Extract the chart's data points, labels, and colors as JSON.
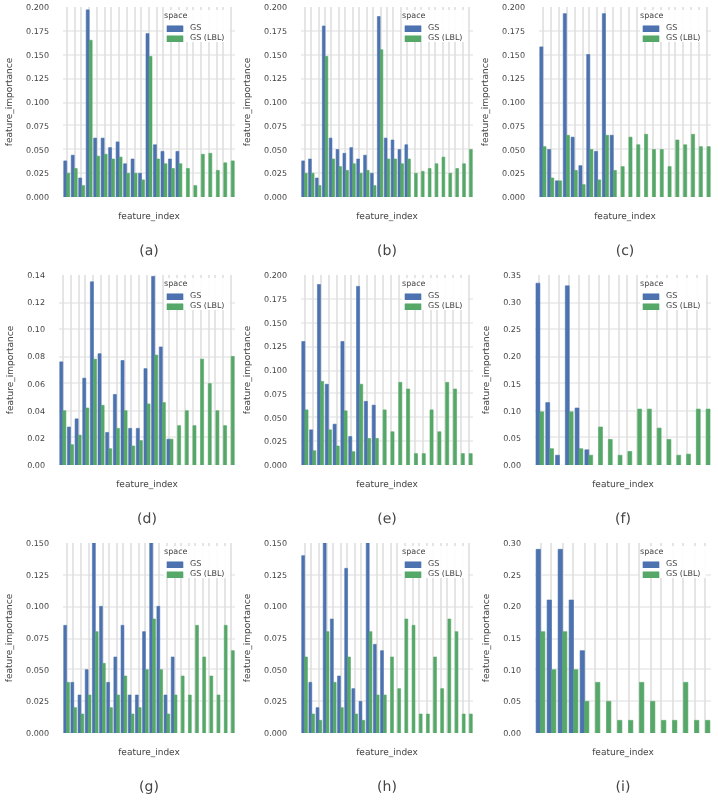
{
  "chart_data": [
    {
      "type": "bar",
      "xlabel": "feature_index",
      "ylabel": "feature_importance",
      "legend_title": "space",
      "legend": "top right",
      "grid": true,
      "annotations": [
        "(a)"
      ],
      "categories": [
        null,
        null,
        null,
        null,
        null,
        null,
        null,
        null,
        null,
        null,
        null,
        null,
        null,
        null,
        null,
        null,
        null,
        null,
        null,
        null,
        null,
        null,
        null
      ],
      "ylim": [
        0,
        0.2
      ],
      "yticks": [
        {
          "value": 0,
          "label": "0.000"
        },
        0.025,
        {
          "value": 0.05,
          "label": "0.050"
        },
        0.075,
        {
          "value": 0.1,
          "label": "0.100"
        },
        0.125,
        {
          "value": 0.15,
          "label": "0.150"
        },
        0.175,
        {
          "value": 0.2,
          "label": "0.200"
        }
      ],
      "series": [
        {
          "name": "GS",
          "color": "#4c72b0",
          "values": [
            0.038,
            0.044,
            0.02,
            0.197,
            0.062,
            0.062,
            0.052,
            0.058,
            0.035,
            0.04,
            0.025,
            0.172,
            0.055,
            0.048,
            0.04,
            0.048,
            null,
            null,
            null,
            null,
            null,
            null,
            null
          ]
        },
        {
          "name": "GS (LBL)",
          "color": "#55a868",
          "values": [
            0.025,
            0.03,
            0.012,
            0.165,
            0.043,
            0.045,
            0.04,
            0.042,
            0.025,
            0.025,
            0.018,
            0.148,
            0.04,
            0.035,
            0.03,
            0.035,
            0.03,
            0.012,
            0.045,
            0.046,
            0.028,
            0.036,
            0.038
          ]
        }
      ]
    },
    {
      "type": "bar",
      "xlabel": "feature_index",
      "ylabel": "feature_importance",
      "legend_title": "space",
      "legend": "top right",
      "grid": true,
      "annotations": [
        "(b)"
      ],
      "categories": [
        null,
        null,
        null,
        null,
        null,
        null,
        null,
        null,
        null,
        null,
        null,
        null,
        null,
        null,
        null,
        null,
        null,
        null,
        null,
        null,
        null,
        null,
        null,
        null,
        null
      ],
      "ylim": [
        0,
        0.2
      ],
      "yticks": [
        {
          "value": 0,
          "label": "0.000"
        },
        0.025,
        {
          "value": 0.05,
          "label": "0.050"
        },
        0.075,
        {
          "value": 0.1,
          "label": "0.100"
        },
        0.125,
        {
          "value": 0.15,
          "label": "0.150"
        },
        0.175,
        {
          "value": 0.2,
          "label": "0.200"
        }
      ],
      "series": [
        {
          "name": "GS",
          "color": "#4c72b0",
          "values": [
            0.038,
            0.04,
            0.02,
            0.18,
            0.062,
            0.05,
            0.046,
            0.052,
            0.04,
            0.044,
            0.025,
            0.19,
            0.062,
            0.06,
            0.05,
            0.055,
            null,
            null,
            null,
            null,
            null,
            null,
            null,
            null,
            null
          ]
        },
        {
          "name": "GS (LBL)",
          "color": "#55a868",
          "values": [
            0.025,
            0.025,
            0.012,
            0.148,
            0.04,
            0.032,
            0.028,
            0.035,
            0.025,
            0.028,
            0.012,
            0.155,
            0.04,
            0.04,
            0.035,
            0.04,
            0.025,
            0.027,
            0.03,
            0.035,
            0.042,
            0.025,
            0.03,
            0.035,
            0.05
          ]
        }
      ]
    },
    {
      "type": "bar",
      "xlabel": "feature_index",
      "ylabel": "feature_importance",
      "legend_title": "space",
      "legend": "top right",
      "grid": true,
      "annotations": [
        "(c)"
      ],
      "categories": [
        null,
        null,
        null,
        null,
        null,
        null,
        null,
        null,
        null,
        null,
        null,
        null,
        null,
        null,
        null,
        null,
        null,
        null,
        null,
        null,
        null,
        null
      ],
      "ylim": [
        0,
        0.2
      ],
      "yticks": [
        {
          "value": 0,
          "label": "0.000"
        },
        0.025,
        {
          "value": 0.05,
          "label": "0.050"
        },
        0.075,
        {
          "value": 0.1,
          "label": "0.100"
        },
        0.125,
        {
          "value": 0.15,
          "label": "0.150"
        },
        0.175,
        {
          "value": 0.2,
          "label": "0.200"
        }
      ],
      "series": [
        {
          "name": "GS",
          "color": "#4c72b0",
          "values": [
            0.158,
            0.05,
            0.017,
            0.193,
            0.063,
            0.033,
            0.15,
            0.048,
            0.193,
            0.065,
            null,
            null,
            null,
            null,
            null,
            null,
            null,
            null,
            null,
            null,
            null,
            null
          ]
        },
        {
          "name": "GS (LBL)",
          "color": "#55a868",
          "values": [
            0.053,
            0.02,
            0.017,
            0.065,
            0.028,
            0.013,
            0.05,
            0.018,
            0.065,
            0.028,
            0.032,
            0.063,
            0.055,
            0.066,
            0.05,
            0.05,
            0.032,
            0.06,
            0.055,
            0.066,
            0.053,
            0.053
          ]
        }
      ]
    },
    {
      "type": "bar",
      "xlabel": "feature_index",
      "ylabel": "feature_importance",
      "legend_title": "space",
      "legend": "top right",
      "grid": true,
      "annotations": [
        "(d)"
      ],
      "categories": [
        null,
        null,
        null,
        null,
        null,
        null,
        null,
        null,
        null,
        null,
        null,
        null,
        null,
        null,
        null,
        null,
        null,
        null,
        null,
        null,
        null,
        null,
        null
      ],
      "ylim": [
        0,
        0.14
      ],
      "yticks": [
        {
          "value": 0,
          "label": "0.00"
        },
        0.02,
        0.04,
        0.06,
        0.08,
        {
          "value": 0.1,
          "label": "0.10"
        },
        0.12,
        0.14
      ],
      "series": [
        {
          "name": "GS",
          "color": "#4c72b0",
          "values": [
            0.076,
            0.028,
            0.034,
            0.064,
            0.135,
            0.082,
            0.024,
            0.052,
            0.077,
            0.027,
            0.027,
            0.071,
            0.139,
            0.087,
            0.019,
            null,
            null,
            null,
            null,
            null,
            null,
            null,
            null
          ]
        },
        {
          "name": "GS (LBL)",
          "color": "#55a868",
          "values": [
            0.04,
            0.015,
            0.022,
            0.042,
            0.078,
            0.044,
            0.012,
            0.027,
            0.04,
            0.014,
            0.018,
            0.045,
            0.081,
            0.046,
            0.019,
            0.029,
            0.04,
            0.029,
            0.078,
            0.06,
            0.04,
            0.029,
            0.08
          ]
        }
      ]
    },
    {
      "type": "bar",
      "xlabel": "feature_index",
      "ylabel": "feature_importance",
      "legend_title": "space",
      "legend": "top right",
      "grid": true,
      "annotations": [
        "(e)"
      ],
      "categories": [
        null,
        null,
        null,
        null,
        null,
        null,
        null,
        null,
        null,
        null,
        null,
        null,
        null,
        null,
        null,
        null,
        null,
        null,
        null,
        null,
        null,
        null
      ],
      "ylim": [
        0,
        0.2
      ],
      "yticks": [
        {
          "value": 0,
          "label": "0.000"
        },
        0.025,
        {
          "value": 0.05,
          "label": "0.050"
        },
        0.075,
        {
          "value": 0.1,
          "label": "0.100"
        },
        0.125,
        {
          "value": 0.15,
          "label": "0.150"
        },
        0.175,
        {
          "value": 0.2,
          "label": "0.200"
        }
      ],
      "series": [
        {
          "name": "GS",
          "color": "#4c72b0",
          "values": [
            0.13,
            0.037,
            0.19,
            0.085,
            0.043,
            0.13,
            0.03,
            0.188,
            0.067,
            0.063,
            null,
            null,
            null,
            null,
            null,
            null,
            null,
            null,
            null,
            null,
            null,
            null
          ]
        },
        {
          "name": "GS (LBL)",
          "color": "#55a868",
          "values": [
            0.058,
            0.015,
            0.088,
            0.037,
            0.02,
            0.057,
            0.014,
            0.085,
            0.028,
            0.028,
            0.058,
            0.035,
            0.087,
            0.08,
            0.012,
            0.012,
            0.058,
            0.035,
            0.087,
            0.08,
            0.012,
            0.012
          ]
        }
      ]
    },
    {
      "type": "bar",
      "xlabel": "feature_index",
      "ylabel": "feature_importance",
      "legend_title": "space",
      "legend": "top right",
      "grid": true,
      "annotations": [
        "(f)"
      ],
      "categories": [
        null,
        null,
        null,
        null,
        null,
        null,
        null,
        null,
        null,
        null,
        null,
        null,
        null,
        null,
        null,
        null,
        null,
        null
      ],
      "ylim": [
        0,
        0.35
      ],
      "yticks": [
        {
          "value": 0,
          "label": "0.00"
        },
        0.05,
        {
          "value": 0.1,
          "label": "0.10"
        },
        0.15,
        {
          "value": 0.2,
          "label": "0.20"
        },
        0.25,
        {
          "value": 0.3,
          "label": "0.30"
        },
        0.35
      ],
      "series": [
        {
          "name": "GS",
          "color": "#4c72b0",
          "values": [
            0.335,
            0.115,
            0.018,
            0.33,
            0.105,
            0.028,
            null,
            null,
            null,
            null,
            null,
            null,
            null,
            null,
            null,
            null,
            null,
            null
          ]
        },
        {
          "name": "GS (LBL)",
          "color": "#55a868",
          "values": [
            0.098,
            0.03,
            null,
            0.098,
            0.03,
            0.018,
            0.07,
            0.047,
            0.018,
            0.025,
            0.103,
            0.103,
            0.068,
            0.047,
            0.018,
            0.02,
            0.103,
            0.103
          ]
        }
      ]
    },
    {
      "type": "bar",
      "xlabel": "feature_index",
      "ylabel": "feature_importance",
      "legend_title": "space",
      "legend": "top right",
      "grid": true,
      "annotations": [
        "(g)"
      ],
      "categories": [
        null,
        null,
        null,
        null,
        null,
        null,
        null,
        null,
        null,
        null,
        null,
        null,
        null,
        null,
        null,
        null,
        null,
        null,
        null,
        null,
        null,
        null,
        null,
        null
      ],
      "ylim": [
        0,
        0.15
      ],
      "yticks": [
        {
          "value": 0,
          "label": "0.000"
        },
        0.025,
        {
          "value": 0.05,
          "label": "0.050"
        },
        0.075,
        {
          "value": 0.1,
          "label": "0.100"
        },
        0.125,
        {
          "value": 0.15,
          "label": "0.150"
        }
      ],
      "series": [
        {
          "name": "GS",
          "color": "#4c72b0",
          "values": [
            0.085,
            0.04,
            0.03,
            0.05,
            0.15,
            0.1,
            0.04,
            0.06,
            0.085,
            0.03,
            0.03,
            0.08,
            0.15,
            0.1,
            0.03,
            0.06,
            null,
            null,
            null,
            null,
            null,
            null,
            null,
            null
          ]
        },
        {
          "name": "GS (LBL)",
          "color": "#55a868",
          "values": [
            0.04,
            0.02,
            0.015,
            0.03,
            0.08,
            0.055,
            0.02,
            0.03,
            0.045,
            0.015,
            0.02,
            0.05,
            0.09,
            0.05,
            0.015,
            0.03,
            0.045,
            0.03,
            0.085,
            0.06,
            0.045,
            0.03,
            0.085,
            0.065
          ]
        }
      ]
    },
    {
      "type": "bar",
      "xlabel": "feature_index",
      "ylabel": "feature_importance",
      "legend_title": "space",
      "legend": "top right",
      "grid": true,
      "annotations": [
        "(h)"
      ],
      "categories": [
        null,
        null,
        null,
        null,
        null,
        null,
        null,
        null,
        null,
        null,
        null,
        null,
        null,
        null,
        null,
        null,
        null,
        null,
        null,
        null,
        null,
        null,
        null,
        null
      ],
      "ylim": [
        0,
        0.15
      ],
      "yticks": [
        {
          "value": 0,
          "label": "0.000"
        },
        0.025,
        {
          "value": 0.05,
          "label": "0.050"
        },
        0.075,
        {
          "value": 0.1,
          "label": "0.100"
        },
        0.125,
        {
          "value": 0.15,
          "label": "0.150"
        }
      ],
      "series": [
        {
          "name": "GS",
          "color": "#4c72b0",
          "values": [
            0.14,
            0.04,
            0.02,
            0.15,
            0.09,
            0.045,
            0.13,
            0.035,
            0.025,
            0.15,
            0.07,
            0.065,
            null,
            null,
            null,
            null,
            null,
            null,
            null,
            null,
            null,
            null,
            null,
            null
          ]
        },
        {
          "name": "GS (LBL)",
          "color": "#55a868",
          "values": [
            0.06,
            0.015,
            0.01,
            0.08,
            0.04,
            0.02,
            0.06,
            0.015,
            0.01,
            0.08,
            0.03,
            0.03,
            0.06,
            0.035,
            0.09,
            0.085,
            0.015,
            0.015,
            0.06,
            0.035,
            0.09,
            0.08,
            0.015,
            0.015
          ]
        }
      ]
    },
    {
      "type": "bar",
      "xlabel": "feature_index",
      "ylabel": "feature_importance",
      "legend_title": "space",
      "legend": "top right",
      "grid": true,
      "annotations": [
        "(i)"
      ],
      "categories": [
        null,
        null,
        null,
        null,
        null,
        null,
        null,
        null,
        null,
        null,
        null,
        null,
        null,
        null,
        null,
        null
      ],
      "ylim": [
        0,
        0.3
      ],
      "yticks": [
        {
          "value": 0,
          "label": "0.00"
        },
        0.05,
        {
          "value": 0.1,
          "label": "0.10"
        },
        0.15,
        {
          "value": 0.2,
          "label": "0.20"
        },
        0.25,
        {
          "value": 0.3,
          "label": "0.30"
        }
      ],
      "series": [
        {
          "name": "GS",
          "color": "#4c72b0",
          "values": [
            0.29,
            0.21,
            0.29,
            0.21,
            0.13,
            null,
            null,
            null,
            null,
            null,
            null,
            null,
            null,
            null,
            null,
            null
          ]
        },
        {
          "name": "GS (LBL)",
          "color": "#55a868",
          "values": [
            0.16,
            0.1,
            0.16,
            0.1,
            0.05,
            0.08,
            0.05,
            0.02,
            0.02,
            0.08,
            0.05,
            0.02,
            0.02,
            0.08,
            0.02,
            0.02
          ]
        }
      ]
    }
  ]
}
